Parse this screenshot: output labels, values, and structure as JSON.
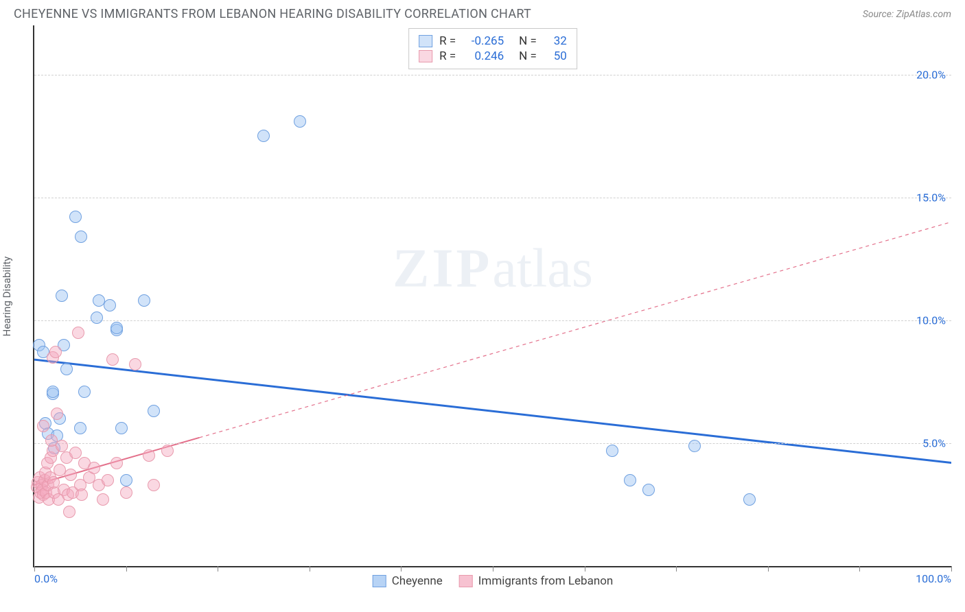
{
  "header": {
    "title": "CHEYENNE VS IMMIGRANTS FROM LEBANON HEARING DISABILITY CORRELATION CHART",
    "source": "Source: ZipAtlas.com"
  },
  "watermark": {
    "zip": "ZIP",
    "atlas": "atlas"
  },
  "ylabel": "Hearing Disability",
  "chart": {
    "type": "scatter",
    "xlim": [
      0,
      100
    ],
    "ylim": [
      0,
      22
    ],
    "x_axis_labels": {
      "min": "0.0%",
      "max": "100.0%"
    },
    "xtick_positions": [
      0,
      10,
      20,
      30,
      40,
      50,
      60,
      70,
      80,
      90,
      100
    ],
    "y_gridlines": [
      {
        "value": 5,
        "label": "5.0%"
      },
      {
        "value": 10,
        "label": "10.0%"
      },
      {
        "value": 15,
        "label": "15.0%"
      },
      {
        "value": 20,
        "label": "20.0%"
      }
    ],
    "background_color": "#ffffff",
    "grid_color": "#d0d0d0",
    "axis_color": "#333333",
    "label_color": "#2a6dd6",
    "marker_radius": 9,
    "marker_stroke_width": 1.2,
    "marker_fill_opacity": 0.35,
    "series": [
      {
        "name": "Cheyenne",
        "color_stroke": "#6fa0e0",
        "color_fill": "rgba(153,193,241,0.45)",
        "trend": {
          "y_at_x0": 8.4,
          "y_at_x100": 4.2,
          "dash": "none",
          "width": 3,
          "color": "#2a6dd6"
        },
        "stats": {
          "R_label": "R =",
          "R_value": "-0.265",
          "N_label": "N =",
          "N_value": "32"
        },
        "points": [
          [
            0.5,
            9.0
          ],
          [
            1.0,
            8.7
          ],
          [
            1.5,
            5.4
          ],
          [
            2.0,
            7.0
          ],
          [
            2.0,
            7.1
          ],
          [
            2.2,
            4.8
          ],
          [
            2.5,
            5.3
          ],
          [
            3.0,
            11.0
          ],
          [
            3.2,
            9.0
          ],
          [
            4.5,
            14.2
          ],
          [
            5.0,
            5.6
          ],
          [
            5.1,
            13.4
          ],
          [
            5.5,
            7.1
          ],
          [
            6.8,
            10.1
          ],
          [
            7.0,
            10.8
          ],
          [
            8.2,
            10.6
          ],
          [
            9.0,
            9.6
          ],
          [
            9.0,
            9.7
          ],
          [
            9.5,
            5.6
          ],
          [
            10.0,
            3.5
          ],
          [
            12.0,
            10.8
          ],
          [
            13.0,
            6.3
          ],
          [
            25.0,
            17.5
          ],
          [
            29.0,
            18.1
          ],
          [
            63.0,
            4.7
          ],
          [
            65.0,
            3.5
          ],
          [
            67.0,
            3.1
          ],
          [
            72.0,
            4.9
          ],
          [
            78.0,
            2.7
          ],
          [
            2.8,
            6.0
          ],
          [
            1.2,
            5.8
          ],
          [
            3.5,
            8.0
          ]
        ]
      },
      {
        "name": "Immigrants from Lebanon",
        "color_stroke": "#e89aad",
        "color_fill": "rgba(244,168,190,0.45)",
        "trend": {
          "y_at_x0": 3.3,
          "y_at_x100": 14.0,
          "solid_until_x": 18,
          "dash": "5,5",
          "width": 2,
          "color": "#e36f8a"
        },
        "stats": {
          "R_label": "R =",
          "R_value": "0.246",
          "N_label": "N =",
          "N_value": "50"
        },
        "points": [
          [
            0.3,
            3.2
          ],
          [
            0.4,
            3.4
          ],
          [
            0.5,
            2.8
          ],
          [
            0.6,
            3.6
          ],
          [
            0.7,
            3.0
          ],
          [
            0.8,
            3.3
          ],
          [
            0.9,
            3.1
          ],
          [
            1.0,
            5.7
          ],
          [
            1.0,
            2.9
          ],
          [
            1.1,
            3.5
          ],
          [
            1.2,
            3.8
          ],
          [
            1.3,
            3.0
          ],
          [
            1.4,
            4.2
          ],
          [
            1.5,
            3.3
          ],
          [
            1.6,
            2.7
          ],
          [
            1.7,
            3.6
          ],
          [
            1.8,
            4.4
          ],
          [
            2.0,
            4.7
          ],
          [
            2.0,
            8.5
          ],
          [
            2.2,
            3.0
          ],
          [
            2.3,
            8.7
          ],
          [
            2.5,
            6.2
          ],
          [
            2.6,
            2.7
          ],
          [
            2.8,
            3.9
          ],
          [
            3.0,
            4.9
          ],
          [
            3.2,
            3.1
          ],
          [
            3.5,
            4.4
          ],
          [
            3.7,
            2.9
          ],
          [
            4.0,
            3.7
          ],
          [
            4.2,
            3.0
          ],
          [
            4.5,
            4.6
          ],
          [
            4.8,
            9.5
          ],
          [
            5.0,
            3.3
          ],
          [
            5.2,
            2.9
          ],
          [
            5.5,
            4.2
          ],
          [
            6.0,
            3.6
          ],
          [
            6.5,
            4.0
          ],
          [
            7.0,
            3.3
          ],
          [
            7.5,
            2.7
          ],
          [
            8.0,
            3.5
          ],
          [
            8.5,
            8.4
          ],
          [
            9.0,
            4.2
          ],
          [
            10.0,
            3.0
          ],
          [
            11.0,
            8.2
          ],
          [
            12.5,
            4.5
          ],
          [
            13.0,
            3.3
          ],
          [
            14.5,
            4.7
          ],
          [
            3.8,
            2.2
          ],
          [
            1.9,
            5.1
          ],
          [
            2.1,
            3.4
          ]
        ]
      }
    ],
    "legend": {
      "items": [
        {
          "label": "Cheyenne",
          "fill": "rgba(153,193,241,0.7)",
          "stroke": "#6fa0e0"
        },
        {
          "label": "Immigrants from Lebanon",
          "fill": "rgba(244,168,190,0.7)",
          "stroke": "#e89aad"
        }
      ]
    }
  }
}
